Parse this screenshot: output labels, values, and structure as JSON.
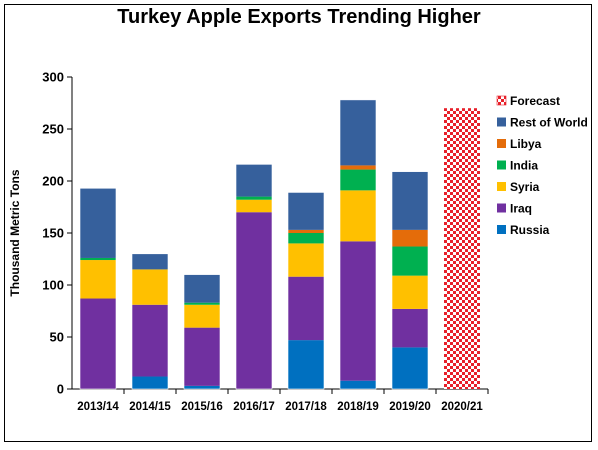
{
  "chart_data": {
    "type": "bar",
    "stacked": true,
    "title": "Turkey Apple Exports Trending Higher",
    "ylabel": "Thousand Metric Tons",
    "xlabel": "",
    "ylim": [
      0,
      300
    ],
    "yticks": [
      0,
      50,
      100,
      150,
      200,
      250,
      300
    ],
    "grid": false,
    "legend_position": "right",
    "categories": [
      "2013/14",
      "2014/15",
      "2015/16",
      "2016/17",
      "2017/18",
      "2018/19",
      "2019/20",
      "2020/21"
    ],
    "series": [
      {
        "name": "Russia",
        "color": "#0070c0",
        "values": [
          0,
          12,
          3,
          0,
          47,
          8,
          40,
          0
        ]
      },
      {
        "name": "Iraq",
        "color": "#7030a0",
        "values": [
          87,
          69,
          56,
          170,
          61,
          134,
          37,
          0
        ]
      },
      {
        "name": "Syria",
        "color": "#ffc000",
        "values": [
          37,
          34,
          22,
          12,
          32,
          49,
          32,
          0
        ]
      },
      {
        "name": "India",
        "color": "#00b050",
        "values": [
          2,
          0,
          2,
          3,
          10,
          20,
          28,
          0
        ]
      },
      {
        "name": "Libya",
        "color": "#e46c0a",
        "values": [
          0,
          0,
          0,
          0,
          3,
          4,
          16,
          0
        ]
      },
      {
        "name": "Rest of World",
        "color": "#36609c",
        "values": [
          67,
          15,
          27,
          31,
          36,
          63,
          56,
          0
        ]
      }
    ],
    "forecast": {
      "name": "Forecast",
      "category": "2020/21",
      "value": 270,
      "color": "#e8202a"
    }
  }
}
